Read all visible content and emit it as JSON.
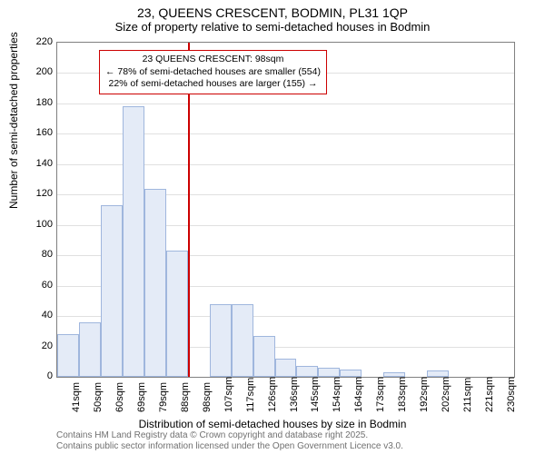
{
  "title": {
    "line1": "23, QUEENS CRESCENT, BODMIN, PL31 1QP",
    "line2": "Size of property relative to semi-detached houses in Bodmin"
  },
  "ylabel": "Number of semi-detached properties",
  "xlabel": "Distribution of semi-detached houses by size in Bodmin",
  "chart": {
    "type": "histogram",
    "ylim": [
      0,
      220
    ],
    "ytick_step": 20,
    "categories": [
      "41sqm",
      "50sqm",
      "60sqm",
      "69sqm",
      "79sqm",
      "88sqm",
      "98sqm",
      "107sqm",
      "117sqm",
      "126sqm",
      "136sqm",
      "145sqm",
      "154sqm",
      "164sqm",
      "173sqm",
      "183sqm",
      "192sqm",
      "202sqm",
      "211sqm",
      "221sqm",
      "230sqm"
    ],
    "values": [
      28,
      36,
      113,
      178,
      124,
      83,
      0,
      48,
      48,
      27,
      12,
      7,
      6,
      5,
      0,
      3,
      0,
      4,
      0,
      0,
      0
    ],
    "bar_fill": "#e4ebf7",
    "bar_border": "#9fb6dd",
    "background": "#ffffff",
    "grid_color": "#e0e0e0",
    "axis_color": "#808080",
    "marker": {
      "category_index": 6,
      "align": "left",
      "color": "#cc0000"
    },
    "annotation": {
      "line1": "23 QUEENS CRESCENT: 98sqm",
      "line2": "← 78% of semi-detached houses are smaller (554)",
      "line3": "22% of semi-detached houses are larger (155) →",
      "border_color": "#cc0000"
    }
  },
  "footer": {
    "line1": "Contains HM Land Registry data © Crown copyright and database right 2025.",
    "line2": "Contains public sector information licensed under the Open Government Licence v3.0."
  }
}
